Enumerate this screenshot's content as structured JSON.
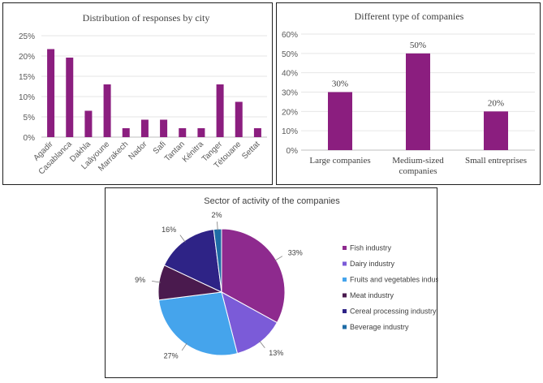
{
  "chart_data": [
    {
      "type": "bar",
      "title": "Distribution of responses by city",
      "categories": [
        "Agadir",
        "Casablanca",
        "Dakhla",
        "Laâyoune",
        "Marrakech",
        "Nador",
        "Safi",
        "Tantan",
        "Kénitra",
        "Tanger",
        "Tétouane",
        "Settat"
      ],
      "values": [
        21.7,
        19.6,
        6.5,
        13.0,
        2.2,
        4.3,
        4.3,
        2.2,
        2.2,
        13.0,
        8.7,
        2.2
      ],
      "ylim": [
        0,
        25
      ],
      "yticks": [
        "0%",
        "5%",
        "10%",
        "15%",
        "20%",
        "25%"
      ],
      "grid": true,
      "color": "#8B1E7F"
    },
    {
      "type": "bar",
      "title": "Different type of companies",
      "categories": [
        "Large companies",
        "Medium-sized companies",
        "Small entreprises"
      ],
      "values": [
        30,
        50,
        20
      ],
      "data_labels": [
        "30%",
        "50%",
        "20%"
      ],
      "ylim": [
        0,
        60
      ],
      "yticks": [
        "0%",
        "10%",
        "20%",
        "30%",
        "40%",
        "50%",
        "60%"
      ],
      "grid": true,
      "color": "#8B1E7F"
    },
    {
      "type": "pie",
      "title": "Sector of activity of the companies",
      "slices": [
        {
          "label": "Fish industry",
          "value": 33,
          "text": "33%",
          "color": "#8E2A8E"
        },
        {
          "label": "Dairy industry",
          "value": 13,
          "text": "13%",
          "color": "#7B5BD8"
        },
        {
          "label": "Fruits and vegetables industry",
          "value": 27,
          "text": "27%",
          "color": "#45A4EC"
        },
        {
          "label": "Meat industry",
          "value": 9,
          "text": "9%",
          "color": "#4A1A4E"
        },
        {
          "label": "Cereal processing industry",
          "value": 16,
          "text": "16%",
          "color": "#2E2386"
        },
        {
          "label": "Beverage industry",
          "value": 2,
          "text": "2%",
          "color": "#1F6CA6"
        }
      ],
      "legend_position": "right"
    }
  ]
}
